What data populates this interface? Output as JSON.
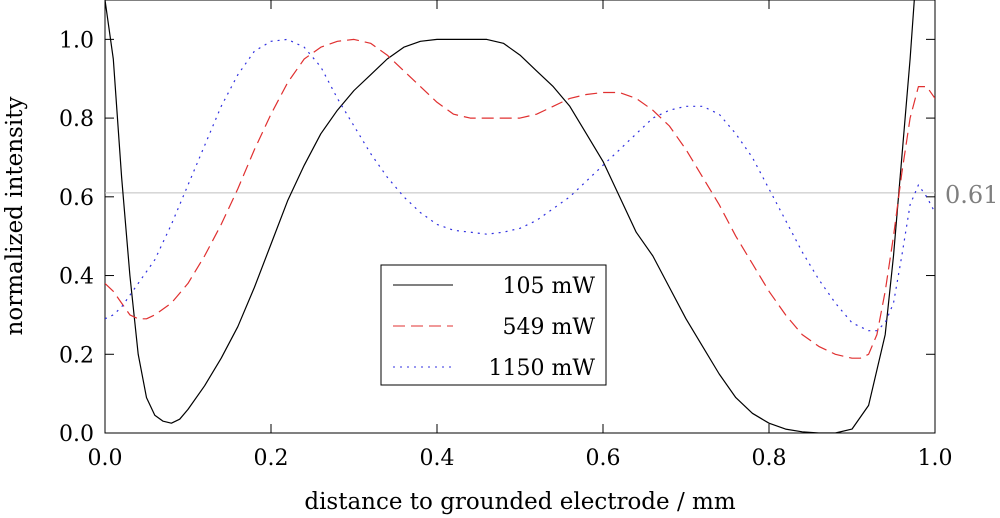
{
  "chart_data": {
    "type": "line",
    "title": "",
    "xlabel": "distance to grounded electrode / mm",
    "ylabel": "normalized intensity",
    "xlim": [
      0.0,
      1.0
    ],
    "ylim": [
      0.0,
      1.1
    ],
    "x_ticks": [
      0.0,
      0.2,
      0.4,
      0.6,
      0.8,
      1.0
    ],
    "y_ticks": [
      0.0,
      0.2,
      0.4,
      0.6,
      0.8,
      1.0
    ],
    "x_tick_labels": [
      "0.0",
      "0.2",
      "0.4",
      "0.6",
      "0.8",
      "1.0"
    ],
    "y_tick_labels": [
      "0.0",
      "0.2",
      "0.4",
      "0.6",
      "0.8",
      "1.0"
    ],
    "grid": false,
    "legend_position": "center-left",
    "reference_line": {
      "y": 0.61,
      "label": "0.61",
      "color": "#bfbfbf",
      "label_color": "#7f7f7f"
    },
    "series": [
      {
        "name": "105 mW",
        "color": "#000000",
        "style": "solid",
        "x": [
          0.0,
          0.01,
          0.02,
          0.03,
          0.04,
          0.05,
          0.06,
          0.07,
          0.08,
          0.09,
          0.1,
          0.12,
          0.14,
          0.16,
          0.18,
          0.2,
          0.22,
          0.24,
          0.26,
          0.28,
          0.3,
          0.32,
          0.34,
          0.36,
          0.38,
          0.4,
          0.42,
          0.44,
          0.46,
          0.48,
          0.5,
          0.52,
          0.54,
          0.56,
          0.58,
          0.6,
          0.62,
          0.64,
          0.66,
          0.68,
          0.7,
          0.72,
          0.74,
          0.76,
          0.78,
          0.8,
          0.82,
          0.84,
          0.86,
          0.88,
          0.9,
          0.92,
          0.94,
          0.95,
          0.96,
          0.97,
          0.975
        ],
        "values": [
          1.1,
          0.95,
          0.65,
          0.4,
          0.2,
          0.09,
          0.045,
          0.03,
          0.025,
          0.035,
          0.06,
          0.12,
          0.19,
          0.27,
          0.37,
          0.48,
          0.59,
          0.68,
          0.76,
          0.82,
          0.87,
          0.91,
          0.95,
          0.98,
          0.995,
          1.0,
          1.0,
          1.0,
          1.0,
          0.99,
          0.96,
          0.92,
          0.88,
          0.83,
          0.76,
          0.69,
          0.6,
          0.51,
          0.45,
          0.37,
          0.29,
          0.22,
          0.15,
          0.09,
          0.05,
          0.025,
          0.01,
          0.003,
          0.0,
          0.0,
          0.01,
          0.07,
          0.25,
          0.45,
          0.7,
          0.95,
          1.1
        ]
      },
      {
        "name": "549 mW",
        "color": "#e03030",
        "style": "dashed",
        "x": [
          0.0,
          0.01,
          0.02,
          0.03,
          0.04,
          0.05,
          0.06,
          0.08,
          0.1,
          0.12,
          0.14,
          0.16,
          0.18,
          0.2,
          0.22,
          0.24,
          0.26,
          0.28,
          0.3,
          0.32,
          0.34,
          0.36,
          0.38,
          0.4,
          0.42,
          0.44,
          0.46,
          0.48,
          0.5,
          0.52,
          0.54,
          0.56,
          0.58,
          0.6,
          0.62,
          0.64,
          0.66,
          0.68,
          0.7,
          0.72,
          0.74,
          0.76,
          0.78,
          0.8,
          0.82,
          0.84,
          0.86,
          0.88,
          0.9,
          0.91,
          0.92,
          0.93,
          0.94,
          0.95,
          0.96,
          0.97,
          0.98,
          0.99,
          1.0
        ],
        "values": [
          0.38,
          0.36,
          0.33,
          0.3,
          0.29,
          0.29,
          0.3,
          0.33,
          0.38,
          0.45,
          0.53,
          0.62,
          0.72,
          0.81,
          0.89,
          0.95,
          0.98,
          0.995,
          1.0,
          0.99,
          0.96,
          0.92,
          0.88,
          0.84,
          0.81,
          0.8,
          0.8,
          0.8,
          0.8,
          0.81,
          0.83,
          0.85,
          0.86,
          0.865,
          0.865,
          0.85,
          0.82,
          0.78,
          0.72,
          0.65,
          0.58,
          0.5,
          0.43,
          0.36,
          0.3,
          0.25,
          0.22,
          0.2,
          0.19,
          0.19,
          0.2,
          0.25,
          0.36,
          0.5,
          0.66,
          0.8,
          0.88,
          0.88,
          0.85
        ]
      },
      {
        "name": "1150 mW",
        "color": "#3030e0",
        "style": "dotted",
        "x": [
          0.0,
          0.01,
          0.02,
          0.03,
          0.04,
          0.06,
          0.08,
          0.1,
          0.12,
          0.14,
          0.16,
          0.18,
          0.2,
          0.22,
          0.24,
          0.26,
          0.28,
          0.3,
          0.32,
          0.34,
          0.36,
          0.38,
          0.4,
          0.42,
          0.44,
          0.46,
          0.48,
          0.5,
          0.52,
          0.54,
          0.56,
          0.58,
          0.6,
          0.62,
          0.64,
          0.66,
          0.68,
          0.7,
          0.72,
          0.74,
          0.76,
          0.78,
          0.8,
          0.82,
          0.84,
          0.86,
          0.88,
          0.9,
          0.92,
          0.93,
          0.94,
          0.95,
          0.96,
          0.97,
          0.98,
          0.99,
          1.0
        ],
        "values": [
          0.29,
          0.3,
          0.32,
          0.35,
          0.38,
          0.44,
          0.53,
          0.63,
          0.73,
          0.83,
          0.91,
          0.97,
          0.995,
          1.0,
          0.98,
          0.93,
          0.85,
          0.78,
          0.71,
          0.65,
          0.6,
          0.56,
          0.53,
          0.515,
          0.51,
          0.505,
          0.51,
          0.52,
          0.54,
          0.57,
          0.6,
          0.64,
          0.68,
          0.72,
          0.76,
          0.8,
          0.82,
          0.83,
          0.83,
          0.81,
          0.76,
          0.7,
          0.62,
          0.54,
          0.46,
          0.39,
          0.33,
          0.28,
          0.26,
          0.26,
          0.28,
          0.33,
          0.45,
          0.58,
          0.63,
          0.6,
          0.56
        ]
      }
    ]
  }
}
